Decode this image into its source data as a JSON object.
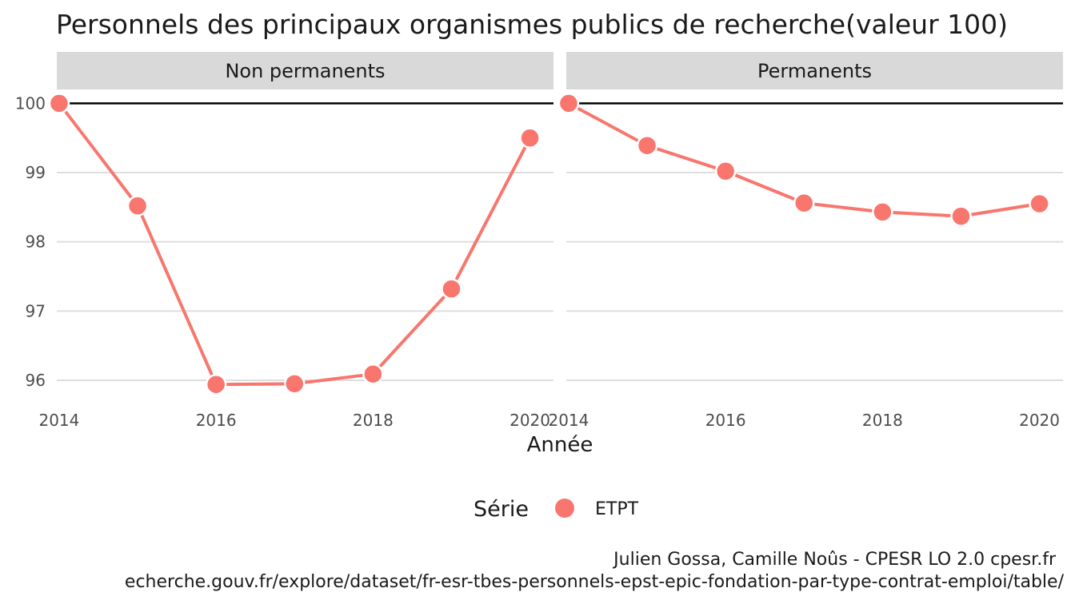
{
  "chart_data": {
    "type": "line",
    "title": "Personnels des principaux organismes publics de recherche(valeur 100)",
    "xlabel": "Année",
    "ylabel": "",
    "x_ticks": [
      2014,
      2016,
      2018,
      2020
    ],
    "y_ticks": [
      96,
      97,
      98,
      99,
      100
    ],
    "xlim": [
      2013.97,
      2020.3
    ],
    "ylim": [
      95.7,
      100.2
    ],
    "reference_line": 100,
    "grid": true,
    "legend": {
      "title": "Série",
      "entries": [
        "ETPT"
      ],
      "position": "bottom"
    },
    "color": "#F8766D",
    "panels": [
      {
        "label": "Non permanents",
        "series": [
          {
            "name": "ETPT",
            "x": [
              2014,
              2015,
              2016,
              2017,
              2018,
              2019,
              2020
            ],
            "values": [
              100.0,
              98.52,
              95.94,
              95.95,
              96.09,
              97.32,
              99.5
            ]
          }
        ]
      },
      {
        "label": "Permanents",
        "series": [
          {
            "name": "ETPT",
            "x": [
              2014,
              2015,
              2016,
              2017,
              2018,
              2019,
              2020
            ],
            "values": [
              100.0,
              99.39,
              99.02,
              98.56,
              98.43,
              98.37,
              98.55
            ]
          }
        ]
      }
    ]
  },
  "caption": {
    "line1": "Julien Gossa, Camille Noûs - CPESR LO 2.0 cpesr.fr",
    "line2": "echerche.gouv.fr/explore/dataset/fr-esr-tbes-personnels-epst-epic-fondation-par-type-contrat-emploi/table/"
  }
}
